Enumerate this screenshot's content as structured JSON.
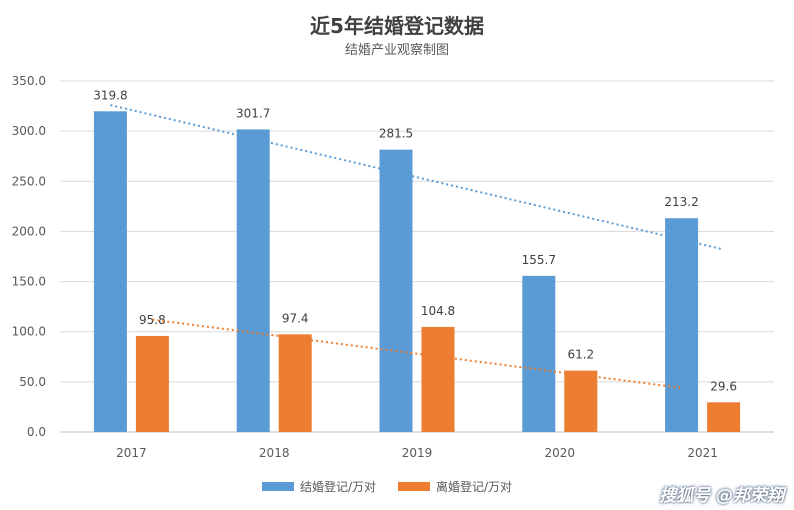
{
  "chart_data": {
    "type": "bar",
    "title": "近5年结婚登记数据",
    "subtitle": "结婚产业观察制图",
    "categories": [
      "2017",
      "2018",
      "2019",
      "2020",
      "2021"
    ],
    "series": [
      {
        "name": "结婚登记/万对",
        "values": [
          319.8,
          301.7,
          281.5,
          155.7,
          213.2
        ],
        "color": "#5b9bd5"
      },
      {
        "name": "离婚登记/万对",
        "values": [
          95.8,
          97.4,
          104.8,
          61.2,
          29.6
        ],
        "color": "#ed7d31"
      }
    ],
    "trendlines": [
      {
        "series": "结婚登记/万对",
        "style": "dotted",
        "color": "#5b9bd5",
        "start": 326.0,
        "end": 182.0
      },
      {
        "series": "离婚登记/万对",
        "style": "dotted",
        "color": "#ed7d31",
        "start": 112.0,
        "end": 44.0
      }
    ],
    "ylim": [
      0,
      350
    ],
    "yticks": [
      "0.0",
      "50.0",
      "100.0",
      "150.0",
      "200.0",
      "250.0",
      "300.0",
      "350.0"
    ],
    "grid": true,
    "legend": "bottom"
  },
  "watermark": "搜狐号 @邦荣翔"
}
